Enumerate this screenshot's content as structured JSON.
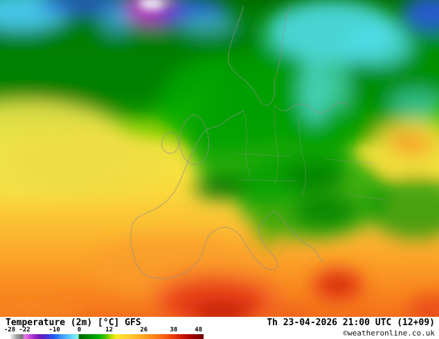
{
  "legend": {
    "title": "Temperature (2m) [°C] GFS",
    "datetime": "Th 23-04-2026 21:00 UTC (12+09)",
    "copyright": "©weatheronline.co.uk",
    "scale": {
      "min": -28,
      "max": 50,
      "unit": "°C",
      "ticks": [
        "-28",
        "-22",
        "-10",
        "0",
        "12",
        "26",
        "38",
        "48"
      ],
      "stops": [
        {
          "value": -28,
          "color": "#ffffff"
        },
        {
          "value": -27,
          "color": "#d8d8d8"
        },
        {
          "value": -25,
          "color": "#a0a0a0"
        },
        {
          "value": -23,
          "color": "#787878"
        },
        {
          "value": -22,
          "color": "#e878e8"
        },
        {
          "value": -20,
          "color": "#c848d8"
        },
        {
          "value": -18,
          "color": "#9828c8"
        },
        {
          "value": -16,
          "color": "#7018b8"
        },
        {
          "value": -14,
          "color": "#5028c8"
        },
        {
          "value": -12,
          "color": "#3840e0"
        },
        {
          "value": -10,
          "color": "#2060f0"
        },
        {
          "value": -8,
          "color": "#3888f8"
        },
        {
          "value": -6,
          "color": "#48a8fc"
        },
        {
          "value": -4,
          "color": "#58c8fc"
        },
        {
          "value": -2,
          "color": "#70e4f4"
        },
        {
          "value": -0.5,
          "color": "#88f0e8"
        },
        {
          "value": 0,
          "color": "#006400"
        },
        {
          "value": 4,
          "color": "#008c00"
        },
        {
          "value": 8,
          "color": "#00b400"
        },
        {
          "value": 11,
          "color": "#58c800"
        },
        {
          "value": 13,
          "color": "#c8dc00"
        },
        {
          "value": 15,
          "color": "#f8ec20"
        },
        {
          "value": 18,
          "color": "#fcd830"
        },
        {
          "value": 22,
          "color": "#fcc028"
        },
        {
          "value": 26,
          "color": "#fca420"
        },
        {
          "value": 30,
          "color": "#fc8418"
        },
        {
          "value": 34,
          "color": "#f86010"
        },
        {
          "value": 38,
          "color": "#e83808"
        },
        {
          "value": 42,
          "color": "#c41404"
        },
        {
          "value": 46,
          "color": "#980000"
        },
        {
          "value": 50,
          "color": "#700000"
        }
      ]
    }
  }
}
